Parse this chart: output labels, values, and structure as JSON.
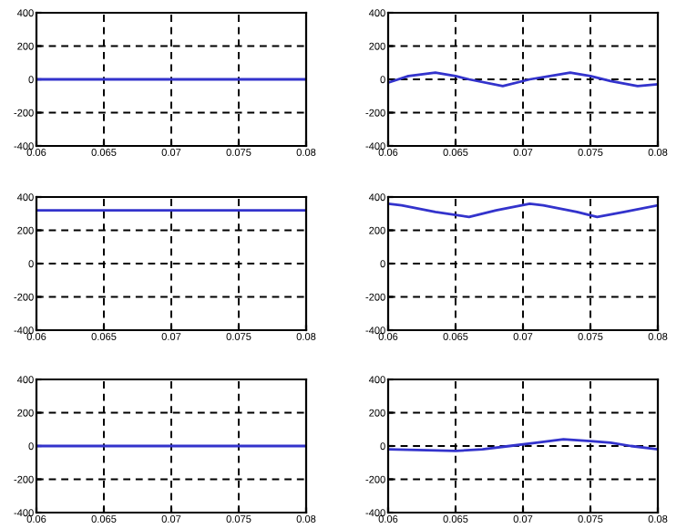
{
  "chart_data": [
    {
      "type": "line",
      "x": [
        0.06,
        0.08
      ],
      "series": [
        {
          "color": "#3333cc",
          "values": [
            0,
            0
          ]
        }
      ],
      "xlim": [
        0.06,
        0.08
      ],
      "xticks": [
        0.06,
        0.065,
        0.07,
        0.075,
        0.08
      ],
      "ylim": [
        -400,
        400
      ],
      "yticks": [
        -400,
        -200,
        0,
        200,
        400
      ],
      "grid": true,
      "line_style": "solid"
    },
    {
      "type": "line",
      "x": [
        0.06,
        0.0615,
        0.0635,
        0.065,
        0.066,
        0.0685,
        0.0705,
        0.072,
        0.0735,
        0.075,
        0.0765,
        0.0785,
        0.08
      ],
      "series": [
        {
          "color": "#3333cc",
          "values": [
            -20,
            20,
            40,
            20,
            0,
            -40,
            0,
            20,
            40,
            20,
            -10,
            -40,
            -30
          ]
        }
      ],
      "xlim": [
        0.06,
        0.08
      ],
      "xticks": [
        0.06,
        0.065,
        0.07,
        0.075,
        0.08
      ],
      "ylim": [
        -400,
        400
      ],
      "yticks": [
        -400,
        -200,
        0,
        200,
        400
      ],
      "grid": true,
      "line_style": "solid"
    },
    {
      "type": "line",
      "x": [
        0.06,
        0.08
      ],
      "series": [
        {
          "color": "#3333cc",
          "values": [
            320,
            320
          ]
        }
      ],
      "xlim": [
        0.06,
        0.08
      ],
      "xticks": [
        0.06,
        0.065,
        0.07,
        0.075,
        0.08
      ],
      "ylim": [
        -400,
        400
      ],
      "yticks": [
        -400,
        -200,
        0,
        200,
        400
      ],
      "grid": true,
      "line_style": "solid"
    },
    {
      "type": "line",
      "x": [
        0.06,
        0.061,
        0.0635,
        0.066,
        0.068,
        0.0705,
        0.0715,
        0.074,
        0.0755,
        0.0775,
        0.08
      ],
      "series": [
        {
          "color": "#3333cc",
          "values": [
            360,
            350,
            310,
            280,
            320,
            360,
            350,
            310,
            280,
            310,
            350
          ]
        }
      ],
      "xlim": [
        0.06,
        0.08
      ],
      "xticks": [
        0.06,
        0.065,
        0.07,
        0.075,
        0.08
      ],
      "ylim": [
        -400,
        400
      ],
      "yticks": [
        -400,
        -200,
        0,
        200,
        400
      ],
      "grid": true,
      "line_style": "solid"
    },
    {
      "type": "line",
      "x": [
        0.06,
        0.08
      ],
      "series": [
        {
          "color": "#3333cc",
          "values": [
            0,
            0
          ]
        }
      ],
      "xlim": [
        0.06,
        0.08
      ],
      "xticks": [
        0.06,
        0.065,
        0.07,
        0.075,
        0.08
      ],
      "ylim": [
        -400,
        400
      ],
      "yticks": [
        -400,
        -200,
        0,
        200,
        400
      ],
      "grid": true,
      "line_style": "solid"
    },
    {
      "type": "line",
      "x": [
        0.06,
        0.065,
        0.067,
        0.069,
        0.071,
        0.073,
        0.075,
        0.0765,
        0.078,
        0.08
      ],
      "series": [
        {
          "color": "#3333cc",
          "values": [
            -20,
            -30,
            -20,
            0,
            20,
            40,
            30,
            20,
            0,
            -20
          ]
        }
      ],
      "xlim": [
        0.06,
        0.08
      ],
      "xticks": [
        0.06,
        0.065,
        0.07,
        0.075,
        0.08
      ],
      "ylim": [
        -400,
        400
      ],
      "yticks": [
        -400,
        -200,
        0,
        200,
        400
      ],
      "grid": true,
      "line_style": "solid"
    }
  ]
}
